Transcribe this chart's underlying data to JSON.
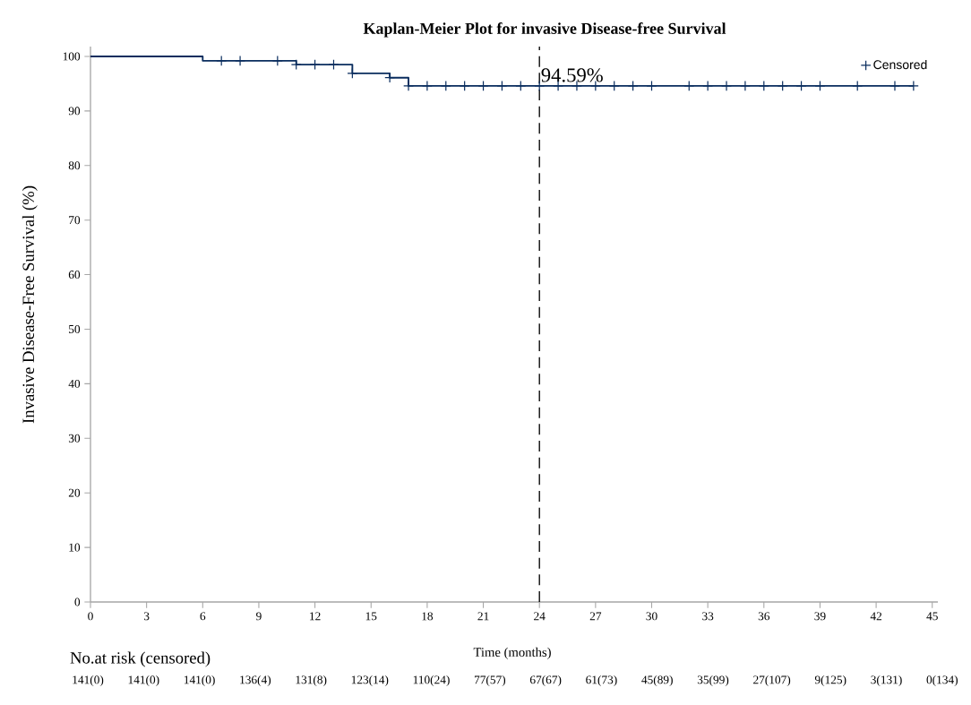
{
  "chart_data": {
    "type": "step",
    "title": "Kaplan-Meier Plot for invasive Disease-free Survival",
    "xlabel": "Time (months)",
    "ylabel": "Invasive Disease-Free Survival (%)",
    "xlim": [
      0,
      45.3
    ],
    "ylim": [
      0,
      101.8
    ],
    "xticks": [
      0,
      3,
      6,
      9,
      12,
      15,
      18,
      21,
      24,
      27,
      30,
      33,
      36,
      39,
      42,
      45
    ],
    "yticks": [
      0,
      10,
      20,
      30,
      40,
      50,
      60,
      70,
      80,
      90,
      100
    ],
    "series": [
      {
        "color": "#0a2d5e",
        "x": [
          0,
          6,
          11,
          14,
          16,
          17,
          44
        ],
        "values": [
          100,
          99.2,
          98.5,
          96.9,
          96.1,
          94.59,
          94.59
        ]
      },
      {
        "type": "scatter",
        "name": "Censored",
        "color": "#0a2d5e",
        "marker": "cross",
        "x": [
          7,
          8,
          10,
          11,
          12,
          13,
          14,
          16,
          17,
          18,
          19,
          20,
          21,
          22,
          23,
          24,
          25,
          26,
          27,
          28,
          29,
          30,
          32,
          33,
          34,
          35,
          36,
          37,
          38,
          39,
          41,
          43,
          44
        ],
        "values": [
          99.2,
          99.2,
          99.2,
          98.5,
          98.5,
          98.5,
          96.9,
          96.1,
          94.59,
          94.59,
          94.59,
          94.59,
          94.59,
          94.59,
          94.59,
          94.59,
          94.59,
          94.59,
          94.59,
          94.59,
          94.59,
          94.59,
          94.59,
          94.59,
          94.59,
          94.59,
          94.59,
          94.59,
          94.59,
          94.59,
          94.59,
          94.59,
          94.59
        ]
      }
    ],
    "ref_lines": [
      {
        "axis": "x",
        "value": 24,
        "color": "#000000",
        "line_style": "dashed"
      }
    ],
    "annotations": [
      "No.at risk (censored)",
      "141(0) 141(0) 141(0) 136(4) 131(8) 123(14) 110(24) 77(57) 67(67) 61(73) 45(89) 35(99) 27(107) 9(125) 3(131) 0(134)",
      {
        "text": "94.59%",
        "x": 24,
        "y": 94.59
      }
    ],
    "legend": "top right",
    "grid": false
  }
}
